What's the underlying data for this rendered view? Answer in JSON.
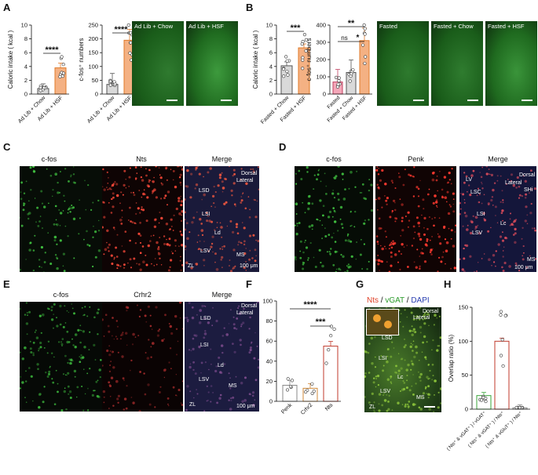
{
  "panels": {
    "A": {
      "label": "A",
      "chart1": {
        "ylabel": "Caloric intake ( kcal )",
        "ticks": [
          "0",
          "2",
          "4",
          "6",
          "8",
          "10"
        ],
        "categories": [
          "Ad Lib + Chow",
          "Ad Lib + HSF"
        ],
        "sig": "****"
      },
      "chart2": {
        "ylabel": "c-fos⁺ numbers",
        "ticks": [
          "0",
          "50",
          "100",
          "150",
          "200",
          "250"
        ],
        "categories": [
          "Ad Lib + Chow",
          "Ad Lib + HSF"
        ],
        "sig": "****"
      },
      "images": [
        "Ad Lib + Chow",
        "Ad Lib + HSF"
      ]
    },
    "B": {
      "label": "B",
      "chart1": {
        "ylabel": "Caloric intake ( kcal )",
        "ticks": [
          "0",
          "2",
          "4",
          "6",
          "8",
          "10"
        ],
        "categories": [
          "Fasted + Chow",
          "Fasted + HSF"
        ],
        "sig": "***"
      },
      "chart2": {
        "ylabel": "c-fos⁺ numbers",
        "ticks": [
          "0",
          "100",
          "200",
          "300",
          "400"
        ],
        "categories": [
          "Fasted",
          "Fasted + Chow",
          "Fasted + HSF"
        ],
        "sig_top": "**",
        "sig_ns": "ns",
        "sig_star": "*"
      },
      "images": [
        "Fasted",
        "Fasted + Chow",
        "Fasted + HSF"
      ]
    },
    "C": {
      "label": "C",
      "titles": [
        "c-fos",
        "Nts",
        "Merge"
      ],
      "regions": [
        "LSD",
        "LSI",
        "LSV",
        "Ld",
        "MS",
        "ZL",
        "Dorsal",
        "Lateral"
      ],
      "scale": "100 μm"
    },
    "D": {
      "label": "D",
      "titles": [
        "c-fos",
        "Penk",
        "Merge"
      ],
      "regions": [
        "LV",
        "LSC",
        "LSI",
        "LSV",
        "Lc",
        "MS",
        "Dorsal",
        "Lateral",
        "SHi"
      ],
      "scale": "100 μm"
    },
    "E": {
      "label": "E",
      "titles": [
        "c-fos",
        "Crhr2",
        "Merge"
      ],
      "regions": [
        "LSD",
        "LSI",
        "LSV",
        "Ld",
        "MS",
        "ZL",
        "Dorsal",
        "Lateral"
      ],
      "scale": "100 μm"
    },
    "F": {
      "label": "F",
      "ylabel": "Overlap ratio (%)",
      "ticks": [
        "0",
        "20",
        "40",
        "60",
        "80",
        "100"
      ],
      "categories": [
        "Penk",
        "Crhr2",
        "Nts"
      ],
      "sig_top": "****",
      "sig_inner": "***"
    },
    "G": {
      "label": "G",
      "title_nts": "Nts",
      "title_vgat": "vGAT",
      "title_dapi": "DAPI",
      "sep": " / ",
      "regions": [
        "LSD",
        "LSI",
        "Lc",
        "LSV",
        "MS",
        "ZL",
        "Dorsal",
        "Lateral"
      ]
    },
    "H": {
      "label": "H",
      "ylabel": "Overlap ratio (%)",
      "ticks": [
        "0",
        "50",
        "100",
        "150"
      ],
      "categories": [
        "( Nts⁺ & vGAT⁺ ) / vGAT⁺",
        "( Nts⁺ & vGAT⁺ ) / Nts⁺",
        "( Nts⁺ & vGluT⁺ ) / Nts⁺"
      ]
    }
  },
  "colors": {
    "chow": "#d9d9d9",
    "hsf": "#f4b183",
    "fasted": "#f4a7b9",
    "orange_edge": "#e07a2a",
    "red": "#c0392b",
    "green": "#3aa63a",
    "gray": "#888888",
    "micro_green": "#1a5d1a"
  },
  "chart_data": [
    {
      "type": "bar",
      "panel": "A1",
      "categories": [
        "Ad Lib + Chow",
        "Ad Lib + HSF"
      ],
      "values": [
        0.8,
        3.8
      ],
      "ylabel": "Caloric intake ( kcal )",
      "ylim": [
        0,
        10
      ]
    },
    {
      "type": "bar",
      "panel": "A2",
      "categories": [
        "Ad Lib + Chow",
        "Ad Lib + HSF"
      ],
      "values": [
        35,
        195
      ],
      "ylabel": "c-fos⁺ numbers",
      "ylim": [
        0,
        250
      ]
    },
    {
      "type": "bar",
      "panel": "B1",
      "categories": [
        "Fasted + Chow",
        "Fasted + HSF"
      ],
      "values": [
        4.1,
        6.7
      ],
      "ylabel": "Caloric intake ( kcal )",
      "ylim": [
        0,
        10
      ]
    },
    {
      "type": "bar",
      "panel": "B2",
      "categories": [
        "Fasted",
        "Fasted + Chow",
        "Fasted + HSF"
      ],
      "values": [
        70,
        125,
        310
      ],
      "ylabel": "c-fos⁺ numbers",
      "ylim": [
        0,
        400
      ]
    },
    {
      "type": "bar",
      "panel": "F",
      "categories": [
        "Penk",
        "Crhr2",
        "Nts"
      ],
      "values": [
        16,
        13,
        55
      ],
      "ylabel": "Overlap ratio (%)",
      "ylim": [
        0,
        100
      ]
    },
    {
      "type": "bar",
      "panel": "H",
      "categories": [
        "( Nts⁺ & vGAT⁺ ) / vGAT⁺",
        "( Nts⁺ & vGAT⁺ ) / Nts⁺",
        "( Nts⁺ & vGluT⁺ ) / Nts⁺"
      ],
      "values": [
        20,
        100,
        2
      ],
      "ylabel": "Overlap ratio (%)",
      "ylim": [
        0,
        150
      ]
    }
  ]
}
